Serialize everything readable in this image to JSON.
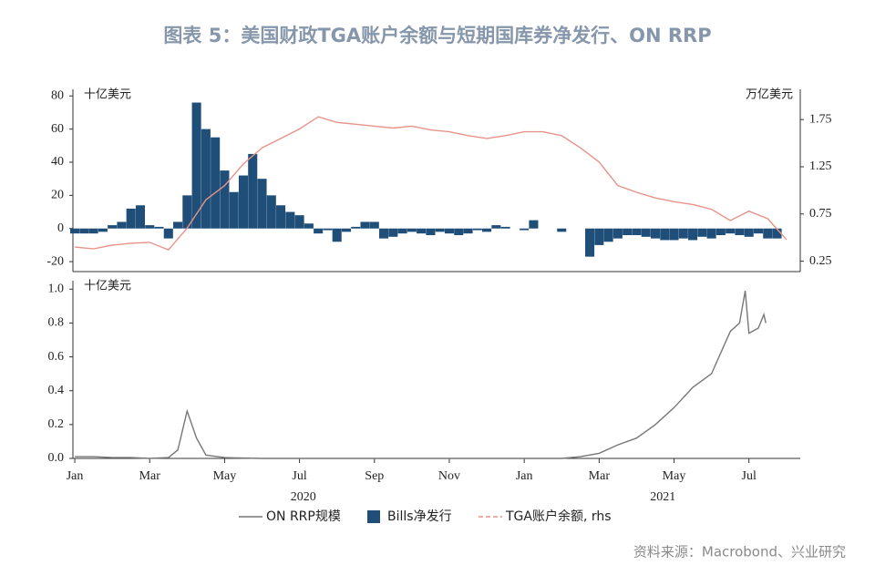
{
  "title": "图表 5：美国财政TGA账户余额与短期国库券净发行、ON RRP",
  "source": "资料来源：Macrobond、兴业研究",
  "chart_data": [
    {
      "type": "bar",
      "y_label": "十亿美元",
      "y2_label": "万亿美元",
      "xlim": [
        -0.05,
        19.37
      ],
      "ylim": [
        -26,
        84
      ],
      "yticks": [
        -20,
        0,
        20,
        40,
        60,
        80
      ],
      "y2lim": [
        0.14,
        2.07
      ],
      "y2ticks": [
        0.25,
        0.75,
        1.25,
        1.75
      ],
      "series": [
        {
          "name": "Bills净发行",
          "type": "bar",
          "color": "#1f4e79",
          "x": [
            0,
            0.25,
            0.5,
            0.75,
            1,
            1.25,
            1.5,
            1.75,
            2,
            2.25,
            2.5,
            2.75,
            3,
            3.25,
            3.5,
            3.75,
            4,
            4.25,
            4.5,
            4.75,
            5,
            5.25,
            5.5,
            5.75,
            6,
            6.25,
            6.5,
            6.75,
            7,
            7.25,
            7.5,
            7.75,
            8,
            8.25,
            8.5,
            8.75,
            9,
            9.25,
            9.5,
            9.75,
            10,
            10.25,
            10.5,
            10.75,
            11,
            11.25,
            11.5,
            11.75,
            12,
            12.25,
            12.5,
            12.75,
            13,
            13.25,
            13.5,
            13.75,
            14,
            14.25,
            14.5,
            14.75,
            15,
            15.25,
            15.5,
            15.75,
            16,
            16.25,
            16.5,
            16.75,
            17,
            17.25,
            17.5,
            17.75,
            18,
            18.25,
            18.5,
            18.75
          ],
          "values": [
            -3,
            -3,
            -3,
            -2,
            2,
            4,
            12,
            14,
            2,
            1,
            -6,
            4,
            20,
            76,
            60,
            55,
            35,
            22,
            32,
            45,
            30,
            20,
            14,
            10,
            8,
            3,
            -3,
            -1,
            -8,
            -2,
            1,
            4,
            4,
            -6,
            -5,
            -3,
            -2,
            -3,
            -4,
            -2,
            -3,
            -4,
            -3,
            -1,
            -2,
            2,
            1,
            0,
            -1,
            5,
            0,
            0,
            -2,
            0,
            0,
            -17,
            -10,
            -8,
            -6,
            -4,
            -4,
            -5,
            -6,
            -7,
            -7,
            -6,
            -7,
            -5,
            -6,
            -4,
            -3,
            -4,
            -5,
            -3,
            -6,
            -6
          ]
        },
        {
          "name": "TGA账户余额, rhs",
          "type": "line",
          "axis": "y2",
          "color": "#e8938a",
          "dashed": true,
          "x": [
            0,
            0.5,
            1,
            1.5,
            2,
            2.5,
            3,
            3.5,
            4,
            4.5,
            5,
            5.5,
            6,
            6.5,
            7,
            7.5,
            8,
            8.5,
            9,
            9.5,
            10,
            10.5,
            11,
            11.5,
            12,
            12.5,
            13,
            13.5,
            14,
            14.5,
            15,
            15.5,
            16,
            16.5,
            17,
            17.5,
            18,
            18.5,
            19
          ],
          "values": [
            0.4,
            0.38,
            0.42,
            0.44,
            0.45,
            0.37,
            0.6,
            0.9,
            1.05,
            1.28,
            1.45,
            1.55,
            1.65,
            1.78,
            1.72,
            1.7,
            1.68,
            1.66,
            1.68,
            1.64,
            1.62,
            1.58,
            1.55,
            1.58,
            1.62,
            1.62,
            1.58,
            1.45,
            1.3,
            1.05,
            0.98,
            0.92,
            0.88,
            0.85,
            0.8,
            0.68,
            0.78,
            0.7,
            0.48
          ]
        }
      ]
    },
    {
      "type": "line",
      "y_label": "十亿美元",
      "xlim": [
        -0.05,
        19.37
      ],
      "xticks": [
        {
          "value": 0,
          "label": "Jan"
        },
        {
          "value": 2,
          "label": "Mar"
        },
        {
          "value": 4,
          "label": "May"
        },
        {
          "value": 6,
          "label": "Jul"
        },
        {
          "value": 8,
          "label": "Sep"
        },
        {
          "value": 10,
          "label": "Nov"
        },
        {
          "value": 12,
          "label": "Jan"
        },
        {
          "value": 14,
          "label": "Mar"
        },
        {
          "value": 16,
          "label": "May"
        },
        {
          "value": 18,
          "label": "Jul"
        }
      ],
      "year_ticks": [
        {
          "value": 6.1,
          "label": "2020"
        },
        {
          "value": 15.7,
          "label": "2021"
        }
      ],
      "ylim": [
        0,
        1.05
      ],
      "yticks": [
        {
          "value": 0,
          "label": "0.0"
        },
        {
          "value": 0.2,
          "label": "0.2"
        },
        {
          "value": 0.4,
          "label": "0.4"
        },
        {
          "value": 0.6,
          "label": "0.6"
        },
        {
          "value": 0.8,
          "label": "0.8"
        },
        {
          "value": 1,
          "label": "1.0"
        }
      ],
      "series": [
        {
          "name": "ON RRP规模",
          "type": "line",
          "color": "#777777",
          "x": [
            0,
            0.5,
            1,
            1.5,
            2,
            2.5,
            2.75,
            3,
            3.25,
            3.5,
            4,
            5,
            6,
            7,
            8,
            9,
            10,
            11,
            12,
            13,
            13.5,
            14,
            14.5,
            15,
            15.5,
            16,
            16.5,
            17,
            17.5,
            17.75,
            17.9,
            18,
            18.25,
            18.4,
            18.45
          ],
          "values": [
            0.01,
            0.01,
            0.005,
            0.005,
            0,
            0.005,
            0.05,
            0.28,
            0.12,
            0.02,
            0.005,
            0,
            0,
            0,
            0,
            0,
            0,
            0,
            0,
            0,
            0.01,
            0.03,
            0.08,
            0.12,
            0.2,
            0.3,
            0.42,
            0.5,
            0.75,
            0.8,
            0.99,
            0.74,
            0.77,
            0.85,
            0.8
          ]
        }
      ]
    }
  ]
}
